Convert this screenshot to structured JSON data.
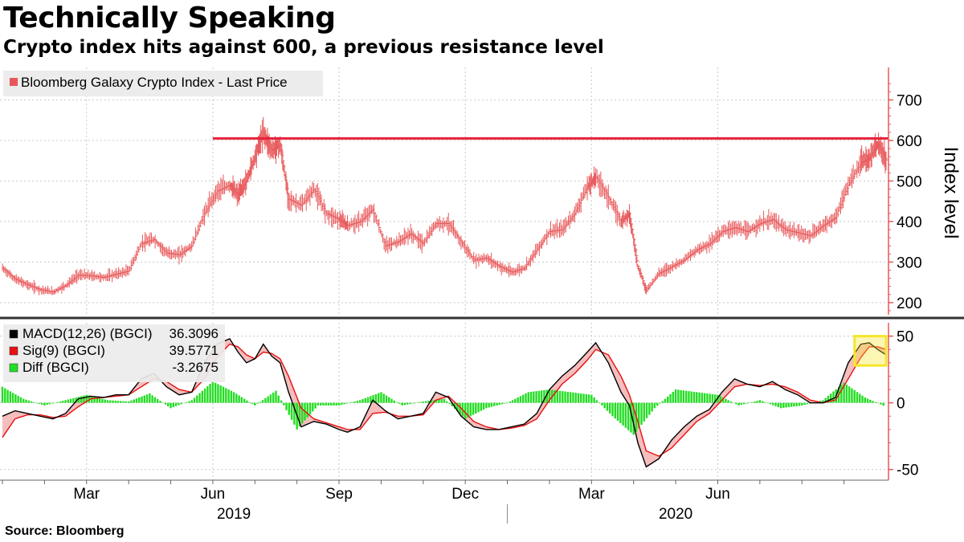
{
  "header": {
    "title": "Technically Speaking",
    "subtitle": "Crypto index hits against 600, a previous resistance level"
  },
  "footer": {
    "source": "Source: Bloomberg"
  },
  "colors": {
    "price": "#e8585a",
    "resistance": "#e8203a",
    "axis": "#e8585a",
    "macd": "#000000",
    "signal": "#e81010",
    "diff": "#22dd22",
    "fill": "#f4b6b6",
    "highlight": "#f5e62a",
    "grid": "#c8c8c8"
  },
  "chart_data": [
    {
      "type": "line",
      "panel": "price",
      "legend": "Bloomberg Galaxy Crypto Index - Last Price",
      "ylabel": "Index level",
      "ylim": [
        170,
        780
      ],
      "yticks": [
        200,
        300,
        400,
        500,
        600,
        700
      ],
      "resistance_level": 605,
      "x_unit": "month",
      "x_start": 0,
      "x_end": 21.0,
      "x_note_months": "0 = 2019-01-01",
      "series": [
        {
          "name": "Bloomberg Galaxy Crypto Index - Last Price",
          "x": [
            0.0,
            0.3,
            0.6,
            0.9,
            1.2,
            1.5,
            1.8,
            2.1,
            2.4,
            2.7,
            3.0,
            3.3,
            3.6,
            3.9,
            4.2,
            4.5,
            4.8,
            5.1,
            5.4,
            5.6,
            5.8,
            6.0,
            6.2,
            6.4,
            6.6,
            6.8,
            7.1,
            7.4,
            7.7,
            8.0,
            8.2,
            8.5,
            8.8,
            9.1,
            9.4,
            9.7,
            10.0,
            10.3,
            10.6,
            10.9,
            11.2,
            11.5,
            11.8,
            12.1,
            12.4,
            12.7,
            13.0,
            13.3,
            13.6,
            13.9,
            14.1,
            14.4,
            14.7,
            14.9,
            15.1,
            15.3,
            15.6,
            15.9,
            16.2,
            16.5,
            16.8,
            17.1,
            17.4,
            17.7,
            18.0,
            18.3,
            18.6,
            18.9,
            19.2,
            19.5,
            19.8,
            20.1,
            20.4,
            20.6,
            20.8,
            21.0
          ],
          "y": [
            285,
            258,
            244,
            232,
            226,
            242,
            268,
            266,
            262,
            270,
            278,
            345,
            356,
            322,
            318,
            340,
            420,
            475,
            490,
            465,
            500,
            560,
            620,
            575,
            590,
            455,
            440,
            480,
            420,
            405,
            390,
            400,
            430,
            340,
            350,
            370,
            345,
            395,
            395,
            350,
            305,
            310,
            290,
            275,
            285,
            330,
            375,
            380,
            420,
            485,
            510,
            460,
            400,
            420,
            290,
            230,
            272,
            288,
            305,
            330,
            345,
            375,
            385,
            375,
            395,
            405,
            380,
            372,
            365,
            390,
            410,
            490,
            545,
            555,
            590,
            552
          ]
        }
      ]
    },
    {
      "type": "line",
      "panel": "macd",
      "ylim": [
        -58,
        60
      ],
      "yticks": [
        -50,
        0,
        50
      ],
      "x_unit": "month",
      "legend": [
        {
          "name": "MACD(12,26) (BGCI)",
          "value": "36.3096"
        },
        {
          "name": "Sig(9) (BGCI)",
          "value": "39.5771"
        },
        {
          "name": "Diff (BGCI)",
          "value": "-3.2675"
        }
      ],
      "series": [
        {
          "name": "MACD(12,26) (BGCI)",
          "x": [
            0.0,
            0.3,
            0.6,
            0.9,
            1.2,
            1.5,
            1.8,
            2.1,
            2.4,
            2.7,
            3.0,
            3.3,
            3.6,
            3.9,
            4.2,
            4.5,
            4.8,
            5.1,
            5.4,
            5.6,
            5.8,
            6.0,
            6.2,
            6.4,
            6.6,
            6.8,
            7.1,
            7.4,
            7.7,
            8.0,
            8.2,
            8.5,
            8.8,
            9.1,
            9.4,
            9.7,
            10.0,
            10.3,
            10.6,
            10.9,
            11.2,
            11.5,
            11.8,
            12.1,
            12.4,
            12.7,
            13.0,
            13.3,
            13.6,
            13.9,
            14.1,
            14.4,
            14.7,
            14.9,
            15.1,
            15.3,
            15.6,
            15.9,
            16.2,
            16.5,
            16.8,
            17.1,
            17.4,
            17.7,
            18.0,
            18.3,
            18.6,
            18.9,
            19.2,
            19.5,
            19.8,
            20.1,
            20.4,
            20.6,
            20.8,
            21.0
          ],
          "y": [
            -10,
            -6,
            -8,
            -10,
            -12,
            -8,
            3,
            5,
            4,
            6,
            6,
            18,
            22,
            12,
            6,
            8,
            30,
            44,
            48,
            38,
            30,
            33,
            44,
            35,
            30,
            8,
            -18,
            -14,
            -16,
            -20,
            -22,
            -18,
            2,
            -6,
            -12,
            -10,
            -8,
            8,
            4,
            -10,
            -18,
            -20,
            -20,
            -18,
            -16,
            -8,
            10,
            20,
            28,
            38,
            45,
            30,
            8,
            -2,
            -30,
            -48,
            -42,
            -28,
            -18,
            -10,
            -5,
            8,
            18,
            14,
            12,
            16,
            10,
            6,
            0,
            0,
            4,
            30,
            44,
            45,
            40,
            36
          ]
        },
        {
          "name": "Sig(9) (BGCI)",
          "x": [
            0.0,
            0.3,
            0.6,
            0.9,
            1.2,
            1.5,
            1.8,
            2.1,
            2.4,
            2.7,
            3.0,
            3.3,
            3.6,
            3.9,
            4.2,
            4.5,
            4.8,
            5.1,
            5.4,
            5.6,
            5.8,
            6.0,
            6.2,
            6.4,
            6.6,
            6.8,
            7.1,
            7.4,
            7.7,
            8.0,
            8.2,
            8.5,
            8.8,
            9.1,
            9.4,
            9.7,
            10.0,
            10.3,
            10.6,
            10.9,
            11.2,
            11.5,
            11.8,
            12.1,
            12.4,
            12.7,
            13.0,
            13.3,
            13.6,
            13.9,
            14.1,
            14.4,
            14.7,
            14.9,
            15.1,
            15.3,
            15.6,
            15.9,
            16.2,
            16.5,
            16.8,
            17.1,
            17.4,
            17.7,
            18.0,
            18.3,
            18.6,
            18.9,
            19.2,
            19.5,
            19.8,
            20.1,
            20.4,
            20.6,
            20.8,
            21.0
          ],
          "y": [
            -26,
            -12,
            -9,
            -9,
            -11,
            -10,
            -3,
            3,
            4,
            5,
            6,
            12,
            18,
            16,
            10,
            8,
            18,
            34,
            44,
            42,
            36,
            33,
            38,
            37,
            33,
            20,
            -4,
            -12,
            -15,
            -18,
            -20,
            -20,
            -8,
            -7,
            -10,
            -10,
            -9,
            2,
            5,
            -4,
            -14,
            -18,
            -20,
            -19,
            -17,
            -12,
            2,
            14,
            22,
            32,
            40,
            36,
            20,
            6,
            -14,
            -36,
            -40,
            -34,
            -24,
            -14,
            -8,
            2,
            12,
            14,
            13,
            14,
            12,
            8,
            2,
            0,
            2,
            18,
            34,
            42,
            42,
            40
          ]
        },
        {
          "name": "Diff (BGCI)",
          "x": [
            0.0,
            0.5,
            1.0,
            1.5,
            2.0,
            2.5,
            3.0,
            3.5,
            4.0,
            4.5,
            5.0,
            5.5,
            6.0,
            6.5,
            7.0,
            7.5,
            8.0,
            8.5,
            9.0,
            9.5,
            10.0,
            10.5,
            11.0,
            11.5,
            12.0,
            12.5,
            13.0,
            13.5,
            14.0,
            14.5,
            15.0,
            15.5,
            16.0,
            16.5,
            17.0,
            17.5,
            18.0,
            18.5,
            19.0,
            19.5,
            20.0,
            20.5,
            21.0
          ],
          "y": [
            12,
            3,
            -2,
            2,
            6,
            2,
            1,
            7,
            -4,
            2,
            16,
            8,
            -2,
            9,
            -20,
            -2,
            -2,
            2,
            8,
            -2,
            1,
            3,
            -12,
            -4,
            0,
            8,
            10,
            8,
            6,
            -10,
            -24,
            -4,
            10,
            8,
            6,
            -2,
            2,
            -4,
            -2,
            2,
            15,
            4,
            -3
          ]
        }
      ],
      "highlight_box": {
        "x": [
          20.25,
          21.0
        ],
        "y": [
          28,
          50
        ]
      }
    }
  ],
  "x_axis": {
    "month_labels": [
      {
        "label": "Mar",
        "x": 2.0
      },
      {
        "label": "Jun",
        "x": 5.0
      },
      {
        "label": "Sep",
        "x": 8.0
      },
      {
        "label": "Dec",
        "x": 11.0
      },
      {
        "label": "Mar",
        "x": 14.0
      },
      {
        "label": "Jun",
        "x": 17.0
      }
    ],
    "year_labels": [
      {
        "label": "2019",
        "x": 5.5
      },
      {
        "label": "2020",
        "x": 16.0
      }
    ],
    "year_divider_x": 12.0
  }
}
